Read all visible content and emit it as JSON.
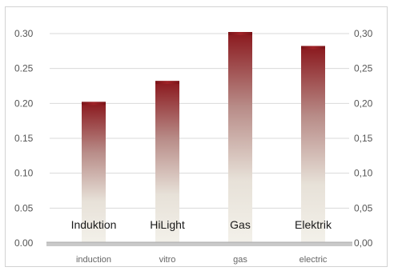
{
  "chart_data": {
    "type": "bar",
    "categories": [
      "induction",
      "vitro",
      "gas",
      "electric"
    ],
    "category_labels_overlay": [
      "Induktion",
      "HiLight",
      "Gas",
      "Elektrik"
    ],
    "values": [
      0.2,
      0.23,
      0.3,
      0.28
    ],
    "ylim": [
      0,
      0.3
    ],
    "y_ticks_left": [
      "0.00",
      "0.05",
      "0.10",
      "0.15",
      "0.20",
      "0.25",
      "0.30"
    ],
    "y_ticks_right": [
      "0,00",
      "0,05",
      "0,10",
      "0,15",
      "0,20",
      "0,25",
      "0,30"
    ],
    "title": "",
    "xlabel": "",
    "ylabel": "",
    "grid": true,
    "colors": {
      "bar_top": "#8b1a1f",
      "bar_bottom": "#f0eee6",
      "grid": "#d9d9d9",
      "frame": "#d2d2d2"
    }
  }
}
